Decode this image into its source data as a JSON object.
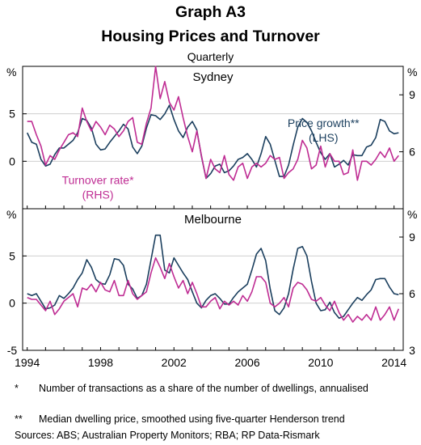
{
  "graph_id": "Graph A3",
  "title": "Housing Prices and Turnover",
  "subtitle": "Quarterly",
  "footnotes": [
    {
      "mark": "*",
      "text": "Number of transactions as a share of the number of dwellings, annualised"
    },
    {
      "mark": "**",
      "text": "Median dwelling price, smoothed using five-quarter Henderson trend"
    }
  ],
  "sources": "Sources: ABS; Australian Property Monitors; RBA; RP Data-Rismark",
  "colors": {
    "price_growth": "#1b3f5e",
    "turnover_rate": "#bf2c93",
    "frame": "#000000",
    "gridline": "#cfcfcf"
  },
  "chart_data": [
    {
      "type": "line",
      "panel": "Sydney",
      "unit_left": "%",
      "unit_right": "%",
      "xlim": [
        1993.75,
        2014.5
      ],
      "xticks": [
        1994,
        1998,
        2002,
        2006,
        2010,
        2014
      ],
      "ylim_left": [
        -5,
        10
      ],
      "yticks_left": [
        0,
        5
      ],
      "ylim_right": [
        3,
        10.5
      ],
      "yticks_right": [
        6,
        9
      ],
      "series": [
        {
          "name": "Price growth**",
          "label_line2": "(LHS)",
          "axis": "left",
          "x": [
            1994.0,
            1994.25,
            1994.5,
            1994.75,
            1995.0,
            1995.25,
            1995.5,
            1995.75,
            1996.0,
            1996.25,
            1996.5,
            1996.75,
            1997.0,
            1997.25,
            1997.5,
            1997.75,
            1998.0,
            1998.25,
            1998.5,
            1998.75,
            1999.0,
            1999.25,
            1999.5,
            1999.75,
            2000.0,
            2000.25,
            2000.5,
            2000.75,
            2001.0,
            2001.25,
            2001.5,
            2001.75,
            2002.0,
            2002.25,
            2002.5,
            2002.75,
            2003.0,
            2003.25,
            2003.5,
            2003.75,
            2004.0,
            2004.25,
            2004.5,
            2004.75,
            2005.0,
            2005.25,
            2005.5,
            2005.75,
            2006.0,
            2006.25,
            2006.5,
            2006.75,
            2007.0,
            2007.25,
            2007.5,
            2007.75,
            2008.0,
            2008.25,
            2008.5,
            2008.75,
            2009.0,
            2009.25,
            2009.5,
            2009.75,
            2010.0,
            2010.25,
            2010.5,
            2010.75,
            2011.0,
            2011.25,
            2011.5,
            2011.75,
            2012.0,
            2012.25,
            2012.5,
            2012.75,
            2013.0,
            2013.25,
            2013.5,
            2013.75,
            2014.0,
            2014.25
          ],
          "values": [
            3,
            2,
            1.8,
            0.2,
            -0.5,
            -0.3,
            0.7,
            1.4,
            1.4,
            1.8,
            2.2,
            3,
            4.5,
            4.3,
            3.5,
            1.8,
            1.2,
            1.3,
            2,
            2.6,
            3.2,
            3.9,
            3.4,
            1.5,
            0.8,
            1.6,
            3.5,
            4.9,
            4.8,
            4.4,
            5,
            5.9,
            4.4,
            3.2,
            2.5,
            3.6,
            4.2,
            3.3,
            0.5,
            -1.8,
            -1.3,
            -0.5,
            -0.3,
            -1.2,
            -1,
            -0.5,
            0.2,
            0.4,
            0.8,
            0.2,
            -0.6,
            0.8,
            2.6,
            1.8,
            0.1,
            -1.6,
            -1.6,
            -0.4,
            1.7,
            3.6,
            4.5,
            4.1,
            3.2,
            2,
            0.9,
            0.2,
            0.8,
            -0.6,
            -0.3,
            0.1,
            -0.4,
            0.7,
            0.6,
            0.6,
            1.5,
            1.7,
            2.5,
            4.4,
            4.2,
            3.2,
            2.9,
            3
          ]
        },
        {
          "name": "Turnover rate*",
          "label_line2": "(RHS)",
          "axis": "right",
          "x": [
            1994.0,
            1994.25,
            1994.5,
            1994.75,
            1995.0,
            1995.25,
            1995.5,
            1995.75,
            1996.0,
            1996.25,
            1996.5,
            1996.75,
            1997.0,
            1997.25,
            1997.5,
            1997.75,
            1998.0,
            1998.25,
            1998.5,
            1998.75,
            1999.0,
            1999.25,
            1999.5,
            1999.75,
            2000.0,
            2000.25,
            2000.5,
            2000.75,
            2001.0,
            2001.25,
            2001.5,
            2001.75,
            2002.0,
            2002.25,
            2002.5,
            2002.75,
            2003.0,
            2003.25,
            2003.5,
            2003.75,
            2004.0,
            2004.25,
            2004.5,
            2004.75,
            2005.0,
            2005.25,
            2005.5,
            2005.75,
            2006.0,
            2006.25,
            2006.5,
            2006.75,
            2007.0,
            2007.25,
            2007.5,
            2007.75,
            2008.0,
            2008.25,
            2008.5,
            2008.75,
            2009.0,
            2009.25,
            2009.5,
            2009.75,
            2010.0,
            2010.25,
            2010.5,
            2010.75,
            2011.0,
            2011.25,
            2011.5,
            2011.75,
            2012.0,
            2012.25,
            2012.5,
            2012.75,
            2013.0,
            2013.25,
            2013.5,
            2013.75,
            2014.0,
            2014.25
          ],
          "values": [
            7.6,
            7.6,
            6.9,
            6.3,
            5.3,
            5.8,
            5.6,
            6.1,
            6.5,
            6.9,
            7,
            6.8,
            8.3,
            7.6,
            7.1,
            7.6,
            7.3,
            6.9,
            7.4,
            7.2,
            6.8,
            7.1,
            7.6,
            7.8,
            6.5,
            6.4,
            7.5,
            8.3,
            10.5,
            8.8,
            9.7,
            8.6,
            8.2,
            8.9,
            7.8,
            6.8,
            6,
            7.1,
            5.8,
            4.6,
            5.6,
            5.1,
            4.9,
            5.8,
            4.8,
            4.5,
            5.2,
            5.4,
            4.6,
            5.2,
            5.4,
            5.2,
            5.4,
            5.8,
            5.6,
            5.7,
            4.6,
            4.9,
            5.1,
            5.6,
            6.6,
            6.2,
            5.1,
            5.3,
            6.3,
            5.2,
            5.9,
            5.5,
            5.5,
            4.8,
            4.9,
            6.1,
            4.5,
            5.5,
            5.5,
            5.3,
            5.6,
            6,
            5.7,
            6.2,
            5.5,
            5.8
          ]
        }
      ],
      "series_labels": [
        {
          "series": "Price growth**",
          "lines": [
            "Price growth**",
            "(LHS)"
          ],
          "anchor_x": 2010.15,
          "anchor_v": 3.6
        },
        {
          "series": "Turnover rate*",
          "lines": [
            "Turnover rate*",
            "(RHS)"
          ],
          "anchor_x": 1997.85,
          "anchor_v": -2.4
        }
      ]
    },
    {
      "type": "line",
      "panel": "Melbourne",
      "unit_left": "%",
      "unit_right": "%",
      "xlim": [
        1993.75,
        2014.5
      ],
      "xticks": [
        1994,
        1998,
        2002,
        2006,
        2010,
        2014
      ],
      "xtick_labels": [
        "1994",
        "1998",
        "2002",
        "2006",
        "2010",
        "2014"
      ],
      "ylim_left": [
        -5,
        10
      ],
      "yticks_left": [
        -5,
        0,
        5
      ],
      "ylim_right": [
        3,
        10.5
      ],
      "yticks_right": [
        3,
        6,
        9
      ],
      "series": [
        {
          "name": "Price growth**",
          "axis": "left",
          "x": [
            1994.0,
            1994.25,
            1994.5,
            1994.75,
            1995.0,
            1995.25,
            1995.5,
            1995.75,
            1996.0,
            1996.25,
            1996.5,
            1996.75,
            1997.0,
            1997.25,
            1997.5,
            1997.75,
            1998.0,
            1998.25,
            1998.5,
            1998.75,
            1999.0,
            1999.25,
            1999.5,
            1999.75,
            2000.0,
            2000.25,
            2000.5,
            2000.75,
            2001.0,
            2001.25,
            2001.5,
            2001.75,
            2002.0,
            2002.25,
            2002.5,
            2002.75,
            2003.0,
            2003.25,
            2003.5,
            2003.75,
            2004.0,
            2004.25,
            2004.5,
            2004.75,
            2005.0,
            2005.25,
            2005.5,
            2005.75,
            2006.0,
            2006.25,
            2006.5,
            2006.75,
            2007.0,
            2007.25,
            2007.5,
            2007.75,
            2008.0,
            2008.25,
            2008.5,
            2008.75,
            2009.0,
            2009.25,
            2009.5,
            2009.75,
            2010.0,
            2010.25,
            2010.5,
            2010.75,
            2011.0,
            2011.25,
            2011.5,
            2011.75,
            2012.0,
            2012.25,
            2012.5,
            2012.75,
            2013.0,
            2013.25,
            2013.5,
            2013.75,
            2014.0,
            2014.25
          ],
          "values": [
            1,
            0.8,
            1,
            0.2,
            -0.6,
            -0.5,
            -0.2,
            0.8,
            0.5,
            1,
            1.6,
            2.5,
            3.2,
            4.6,
            3.8,
            2.5,
            2.1,
            2,
            3,
            4.7,
            4.6,
            4,
            2,
            1.5,
            0.5,
            0.8,
            2,
            4.6,
            7.2,
            7.2,
            3.5,
            3.2,
            4.8,
            4,
            3.2,
            2.5,
            1.2,
            0,
            -0.5,
            0.3,
            0.8,
            1,
            0.5,
            -0.1,
            -0.1,
            0.6,
            1.2,
            1.6,
            2,
            3.5,
            5.2,
            5.8,
            4.5,
            1.5,
            -0.8,
            -1.2,
            -0.5,
            1,
            3.6,
            5.8,
            6,
            5,
            2.3,
            0,
            -0.8,
            -0.7,
            0.1,
            -1,
            -1.6,
            -1.4,
            -0.7,
            0,
            0.6,
            0.3,
            0.9,
            1.4,
            2.5,
            2.6,
            2.6,
            1.7,
            1,
            0.9
          ]
        },
        {
          "name": "Turnover rate*",
          "axis": "right",
          "x": [
            1994.0,
            1994.25,
            1994.5,
            1994.75,
            1995.0,
            1995.25,
            1995.5,
            1995.75,
            1996.0,
            1996.25,
            1996.5,
            1996.75,
            1997.0,
            1997.25,
            1997.5,
            1997.75,
            1998.0,
            1998.25,
            1998.5,
            1998.75,
            1999.0,
            1999.25,
            1999.5,
            1999.75,
            2000.0,
            2000.25,
            2000.5,
            2000.75,
            2001.0,
            2001.25,
            2001.5,
            2001.75,
            2002.0,
            2002.25,
            2002.5,
            2002.75,
            2003.0,
            2003.25,
            2003.5,
            2003.75,
            2004.0,
            2004.25,
            2004.5,
            2004.75,
            2005.0,
            2005.25,
            2005.5,
            2005.75,
            2006.0,
            2006.25,
            2006.5,
            2006.75,
            2007.0,
            2007.25,
            2007.5,
            2007.75,
            2008.0,
            2008.25,
            2008.5,
            2008.75,
            2009.0,
            2009.25,
            2009.5,
            2009.75,
            2010.0,
            2010.25,
            2010.5,
            2010.75,
            2011.0,
            2011.25,
            2011.5,
            2011.75,
            2012.0,
            2012.25,
            2012.5,
            2012.75,
            2013.0,
            2013.25,
            2013.5,
            2013.75,
            2014.0,
            2014.25
          ],
          "values": [
            5.8,
            5.7,
            5.7,
            5.4,
            5.1,
            5.6,
            4.9,
            5.2,
            5.6,
            5.8,
            6,
            5.3,
            6.3,
            6.2,
            6.5,
            6.1,
            6.6,
            6.2,
            6.1,
            6.7,
            5.9,
            5.9,
            6.7,
            6,
            5.7,
            5.9,
            6.1,
            7.1,
            7.9,
            7.4,
            6.8,
            7.6,
            6.9,
            6.3,
            6.7,
            6,
            6.6,
            6,
            5.3,
            5.3,
            5.6,
            5.8,
            5.2,
            5.6,
            5.4,
            5.6,
            5.4,
            5.9,
            5.6,
            6.1,
            6.9,
            6.9,
            6.6,
            5.5,
            5.3,
            5.5,
            5.8,
            5.3,
            6.3,
            6.6,
            6.5,
            6.2,
            5.7,
            5.6,
            5.8,
            5.4,
            5.1,
            5.6,
            5,
            4.6,
            4.9,
            4.5,
            4.8,
            4.6,
            4.9,
            4.6,
            5.3,
            4.6,
            4.9,
            5.3,
            4.6,
            5.2
          ]
        }
      ]
    }
  ]
}
